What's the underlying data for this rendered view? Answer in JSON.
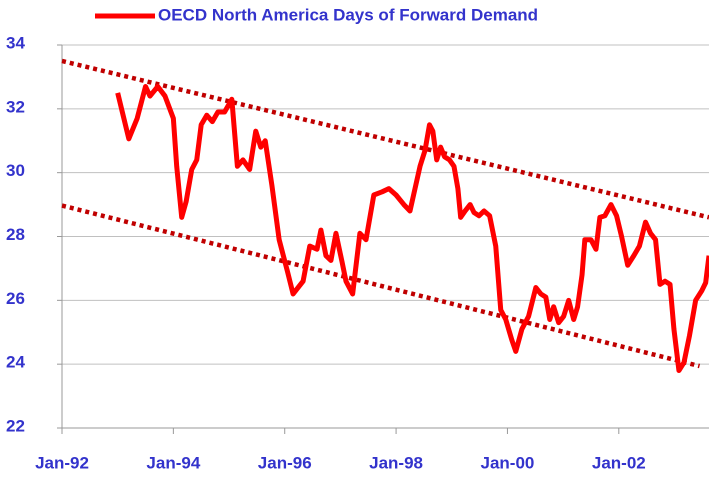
{
  "chart_data": {
    "type": "line",
    "series": [
      {
        "name": "OECD North America Days of Forward Demand",
        "color": "#ff0000",
        "x": [
          1993.0,
          1993.2,
          1993.35,
          1993.5,
          1993.58,
          1993.72,
          1993.85,
          1994.0,
          1994.06,
          1994.15,
          1994.23,
          1994.33,
          1994.42,
          1994.5,
          1994.6,
          1994.7,
          1994.8,
          1994.92,
          1995.05,
          1995.15,
          1995.25,
          1995.37,
          1995.48,
          1995.57,
          1995.65,
          1995.77,
          1995.9,
          1996.05,
          1996.15,
          1996.33,
          1996.45,
          1996.58,
          1996.65,
          1996.74,
          1996.83,
          1996.92,
          1997.03,
          1997.1,
          1997.22,
          1997.35,
          1997.46,
          1997.6,
          1997.75,
          1997.87,
          1998.0,
          1998.14,
          1998.25,
          1998.34,
          1998.43,
          1998.52,
          1998.6,
          1998.66,
          1998.73,
          1998.8,
          1998.87,
          1998.96,
          1999.04,
          1999.11,
          1999.16,
          1999.24,
          1999.33,
          1999.4,
          1999.49,
          1999.58,
          1999.68,
          1999.79,
          1999.88,
          1999.97,
          2000.08,
          2000.15,
          2000.26,
          2000.38,
          2000.51,
          2000.6,
          2000.69,
          2000.76,
          2000.83,
          2000.92,
          2001.01,
          2001.1,
          2001.19,
          2001.26,
          2001.34,
          2001.39,
          2001.5,
          2001.59,
          2001.66,
          2001.75,
          2001.86,
          2001.96,
          2002.05,
          2002.16,
          2002.27,
          2002.37,
          2002.48,
          2002.57,
          2002.66,
          2002.74,
          2002.83,
          2002.92,
          2002.99,
          2003.08,
          2003.17,
          2003.27,
          2003.38,
          2003.49,
          2003.56,
          2003.62
        ],
        "values": [
          32.5,
          31.06,
          31.7,
          32.7,
          32.4,
          32.7,
          32.4,
          31.7,
          30.2,
          28.6,
          29.1,
          30.1,
          30.4,
          31.5,
          31.8,
          31.6,
          31.9,
          31.9,
          32.3,
          30.2,
          30.4,
          30.1,
          31.3,
          30.8,
          31.0,
          29.6,
          27.9,
          26.9,
          26.2,
          26.6,
          27.7,
          27.6,
          28.2,
          27.4,
          27.25,
          28.1,
          27.2,
          26.6,
          26.2,
          28.1,
          27.9,
          29.3,
          29.4,
          29.5,
          29.3,
          29.0,
          28.8,
          29.5,
          30.2,
          30.7,
          31.5,
          31.3,
          30.4,
          30.8,
          30.5,
          30.4,
          30.2,
          29.5,
          28.6,
          28.8,
          29.0,
          28.75,
          28.65,
          28.8,
          28.65,
          27.7,
          25.7,
          25.4,
          24.75,
          24.4,
          25.1,
          25.5,
          26.4,
          26.2,
          26.1,
          25.4,
          25.8,
          25.3,
          25.5,
          26.0,
          25.4,
          25.8,
          26.8,
          27.9,
          27.9,
          27.6,
          28.6,
          28.65,
          29.0,
          28.65,
          28.0,
          27.1,
          27.4,
          27.7,
          28.45,
          28.1,
          27.9,
          26.5,
          26.6,
          26.5,
          25.1,
          23.8,
          24.05,
          24.9,
          26.0,
          26.3,
          26.55,
          27.4
        ]
      }
    ],
    "trend_lines": [
      {
        "color": "#c00000",
        "x": [
          1992,
          2003.62
        ],
        "values": [
          33.5,
          28.6
        ]
      },
      {
        "color": "#c00000",
        "x": [
          1992,
          2003.45
        ],
        "values": [
          28.97,
          23.94
        ]
      }
    ],
    "xlim": [
      1992,
      2003.62
    ],
    "xticks": [
      {
        "value": 1992,
        "label": "Jan-92"
      },
      {
        "value": 1994,
        "label": "Jan-94"
      },
      {
        "value": 1996,
        "label": "Jan-96"
      },
      {
        "value": 1998,
        "label": "Jan-98"
      },
      {
        "value": 2000,
        "label": "Jan-00"
      },
      {
        "value": 2002,
        "label": "Jan-02"
      }
    ],
    "ylim": [
      22,
      34
    ],
    "yticks": [
      22,
      24,
      26,
      28,
      30,
      32,
      34
    ],
    "grid": true,
    "legend": "top"
  }
}
